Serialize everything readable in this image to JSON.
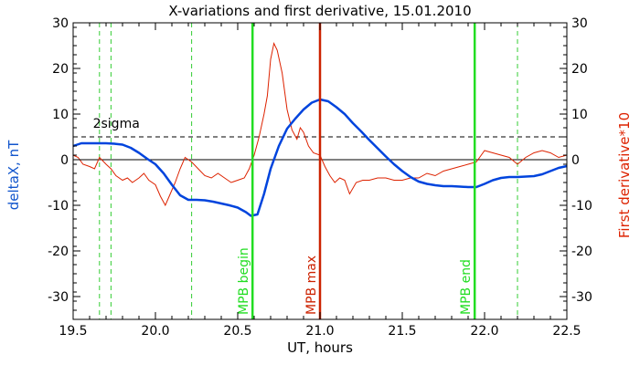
{
  "chart_data": {
    "type": "line",
    "title": "X-variations and first derivative, 15.01.2010",
    "xlabel": "UT, hours",
    "ylabel_left": "deltaX, nT",
    "ylabel_right": "First derivative*10",
    "xlim": [
      19.5,
      22.5
    ],
    "ylim": [
      -35,
      30
    ],
    "x_ticks": [
      "19.5",
      "20.0",
      "20.5",
      "21.0",
      "21.5",
      "22.0",
      "22.5"
    ],
    "y_ticks": [
      "-30",
      "-20",
      "-10",
      "0",
      "10",
      "20",
      "30"
    ],
    "grid": false,
    "colors": {
      "deltaX": "#0044dd",
      "derivative": "#dd2200",
      "mpb_lines": "#22dd22",
      "max_line": "#cc2200",
      "dashed_lines": "#33cc33",
      "axis_left_label": "#1155cc",
      "axis_right_label": "#dd2200"
    },
    "series": [
      {
        "role": "deltaX",
        "x": [
          19.5,
          19.55,
          19.6,
          19.65,
          19.7,
          19.75,
          19.8,
          19.85,
          19.9,
          19.95,
          20.0,
          20.05,
          20.1,
          20.15,
          20.2,
          20.25,
          20.3,
          20.35,
          20.4,
          20.45,
          20.5,
          20.55,
          20.58,
          20.62,
          20.66,
          20.7,
          20.75,
          20.8,
          20.85,
          20.9,
          20.95,
          21.0,
          21.05,
          21.1,
          21.15,
          21.2,
          21.25,
          21.3,
          21.35,
          21.4,
          21.45,
          21.5,
          21.55,
          21.6,
          21.65,
          21.7,
          21.75,
          21.8,
          21.85,
          21.9,
          21.95,
          22.0,
          22.05,
          22.1,
          22.15,
          22.2,
          22.25,
          22.3,
          22.35,
          22.4,
          22.45,
          22.5
        ],
        "y": [
          3,
          3.6,
          3.6,
          3.6,
          3.6,
          3.5,
          3.3,
          2.6,
          1.5,
          0.2,
          -1.0,
          -3.0,
          -5.5,
          -7.8,
          -8.8,
          -8.8,
          -8.9,
          -9.2,
          -9.6,
          -10.0,
          -10.5,
          -11.5,
          -12.3,
          -12.0,
          -7.5,
          -2.0,
          3.0,
          6.8,
          9.0,
          11.0,
          12.5,
          13.2,
          12.8,
          11.5,
          10.0,
          8.0,
          6.2,
          4.3,
          2.5,
          0.7,
          -1.0,
          -2.5,
          -3.8,
          -4.8,
          -5.3,
          -5.6,
          -5.8,
          -5.8,
          -5.9,
          -6.0,
          -6.0,
          -5.3,
          -4.5,
          -4.0,
          -3.8,
          -3.8,
          -3.7,
          -3.6,
          -3.2,
          -2.5,
          -1.8,
          -1.4
        ]
      },
      {
        "role": "derivative",
        "x": [
          19.5,
          19.53,
          19.56,
          19.6,
          19.63,
          19.66,
          19.7,
          19.73,
          19.76,
          19.8,
          19.83,
          19.86,
          19.9,
          19.93,
          19.96,
          20.0,
          20.03,
          20.06,
          20.09,
          20.12,
          20.15,
          20.18,
          20.22,
          20.26,
          20.3,
          20.34,
          20.38,
          20.42,
          20.46,
          20.5,
          20.54,
          20.57,
          20.6,
          20.63,
          20.66,
          20.68,
          20.7,
          20.72,
          20.74,
          20.77,
          20.8,
          20.83,
          20.86,
          20.88,
          20.9,
          20.93,
          20.96,
          21.0,
          21.03,
          21.06,
          21.09,
          21.12,
          21.15,
          21.18,
          21.22,
          21.26,
          21.3,
          21.35,
          21.4,
          21.45,
          21.5,
          21.55,
          21.6,
          21.65,
          21.7,
          21.75,
          21.8,
          21.85,
          21.9,
          21.95,
          22.0,
          22.05,
          22.1,
          22.15,
          22.2,
          22.25,
          22.3,
          22.35,
          22.4,
          22.45,
          22.5
        ],
        "y": [
          1.0,
          0.5,
          -1.0,
          -1.5,
          -2.0,
          0.5,
          -1.0,
          -2.0,
          -3.5,
          -4.5,
          -4.0,
          -5.0,
          -4.0,
          -3.0,
          -4.5,
          -5.5,
          -8.0,
          -10.0,
          -7.5,
          -5.0,
          -2.0,
          0.5,
          -0.5,
          -2.0,
          -3.5,
          -4.0,
          -3.0,
          -4.0,
          -5.0,
          -4.5,
          -4.0,
          -2.0,
          1.0,
          5.0,
          10.0,
          14.0,
          22.0,
          25.5,
          24.0,
          19.0,
          11.0,
          6.5,
          4.5,
          7.0,
          6.0,
          3.0,
          1.5,
          1.0,
          -1.5,
          -3.5,
          -5.0,
          -4.0,
          -4.5,
          -7.5,
          -5.0,
          -4.5,
          -4.5,
          -4.0,
          -4.0,
          -4.5,
          -4.5,
          -4.0,
          -4.0,
          -3.0,
          -3.5,
          -2.5,
          -2.0,
          -1.5,
          -1.0,
          -0.5,
          2.0,
          1.5,
          1.0,
          0.5,
          -1.0,
          0.5,
          1.5,
          2.0,
          1.5,
          0.5,
          1.0
        ]
      }
    ],
    "reference_lines": {
      "zero": 0,
      "sigma": {
        "label": "2sigma",
        "value": 5
      }
    },
    "dashed_verticals": [
      19.66,
      19.73,
      20.22,
      22.2
    ],
    "markers": [
      {
        "label": "MPB begin",
        "x": 20.59,
        "kind": "mpb"
      },
      {
        "label": "MPB max",
        "x": 21.0,
        "kind": "max"
      },
      {
        "label": "MPB end",
        "x": 21.94,
        "kind": "mpb"
      }
    ]
  }
}
